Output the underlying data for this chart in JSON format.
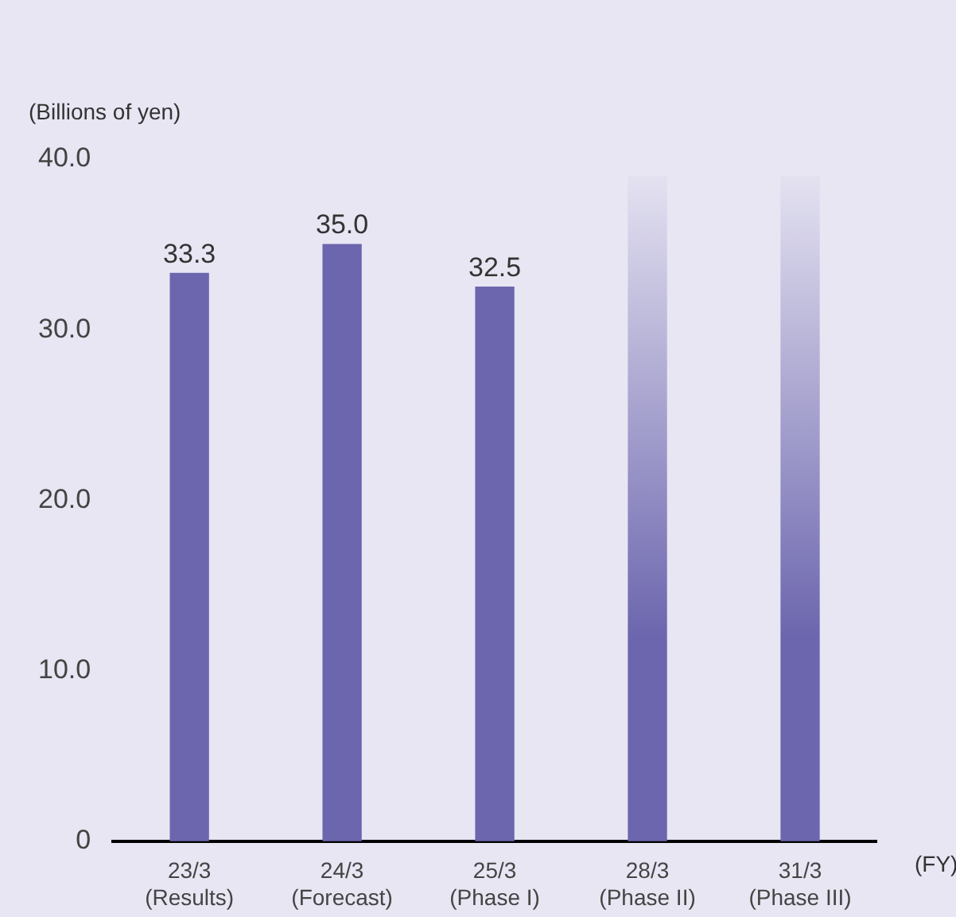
{
  "chart_data": {
    "type": "bar",
    "ylabel": "(Billions of yen)",
    "xlabel": "(FY)",
    "categories": [
      "23/3\n(Results)",
      "24/3\n(Forecast)",
      "25/3\n(Phase I)",
      "28/3\n(Phase II)",
      "31/3\n(Phase III)"
    ],
    "series": [
      {
        "color": "#6c66ae",
        "values": [
          33.3,
          35.0,
          32.5,
          null,
          null
        ],
        "value_labels": [
          "33.3",
          "35.0",
          "32.5",
          null,
          null
        ]
      },
      {
        "color": "#6c66ae",
        "values": [
          null,
          null,
          null,
          39,
          39
        ]
      }
    ],
    "ylim": [
      0,
      40
    ],
    "yticks": [
      {
        "value": 0,
        "label": "0"
      },
      {
        "value": 10,
        "label": "10.0"
      },
      {
        "value": 20,
        "label": "20.0"
      },
      {
        "value": 30,
        "label": "30.0"
      },
      {
        "value": 40,
        "label": "40.0"
      }
    ],
    "grid": false,
    "legend": false
  }
}
